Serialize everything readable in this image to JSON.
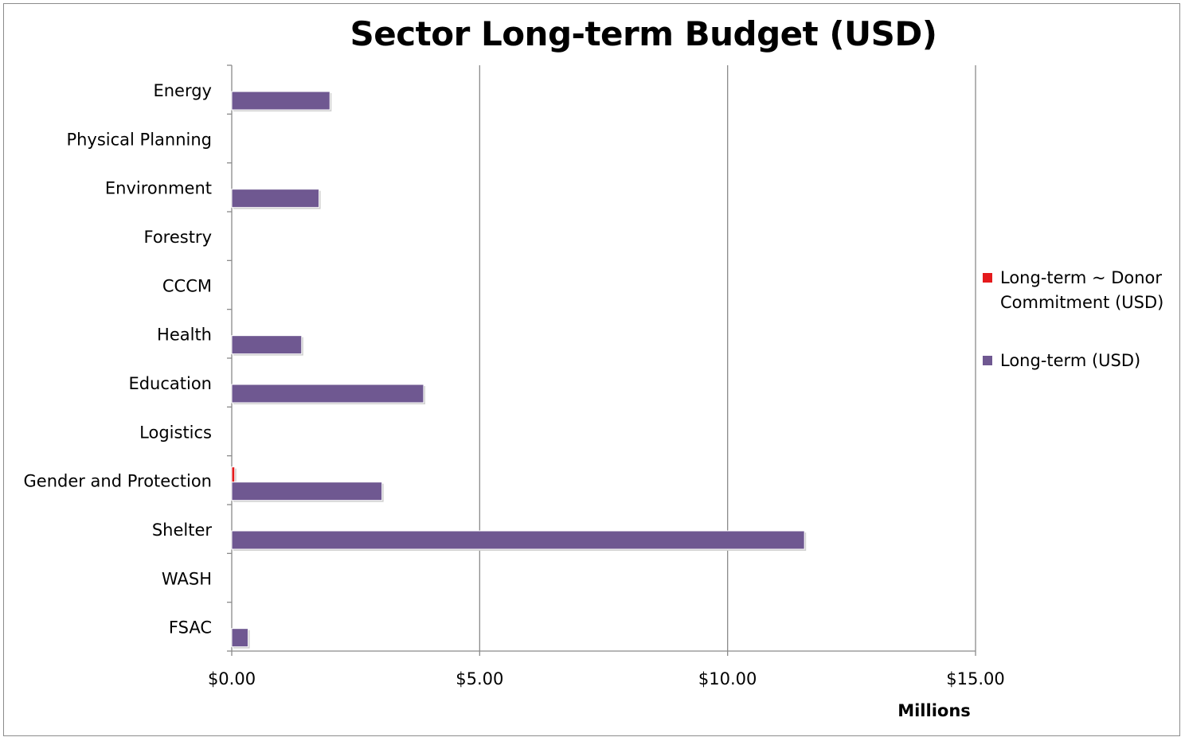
{
  "chart_data": {
    "type": "bar",
    "orientation": "horizontal",
    "title": "Sector Long-term Budget (USD)",
    "xlabel": "Millions",
    "ylabel": "",
    "xlim": [
      0,
      15
    ],
    "x_ticks": [
      0,
      5,
      10,
      15
    ],
    "x_tick_labels": [
      "$0.00",
      "$5.00",
      "$10.00",
      "$15.00"
    ],
    "grid": "vertical major gridlines",
    "legend_position": "right",
    "categories": [
      "Energy",
      "Physical Planning",
      "Environment",
      "Forestry",
      "CCCM",
      "Health",
      "Education",
      "Logistics",
      "Gender and Protection",
      "Shelter",
      "WASH",
      "FSAC"
    ],
    "series": [
      {
        "name": "Long-term ~ Donor Commitment (USD)",
        "color": "#e41a1c",
        "values": [
          0,
          0,
          0,
          0,
          0,
          0,
          0,
          0,
          0.06,
          0,
          0,
          0
        ]
      },
      {
        "name": "Long-term (USD)",
        "color": "#6f5891",
        "values": [
          1.98,
          0,
          1.76,
          0,
          0,
          1.41,
          3.87,
          0,
          3.03,
          11.55,
          0,
          0.33
        ]
      }
    ]
  }
}
